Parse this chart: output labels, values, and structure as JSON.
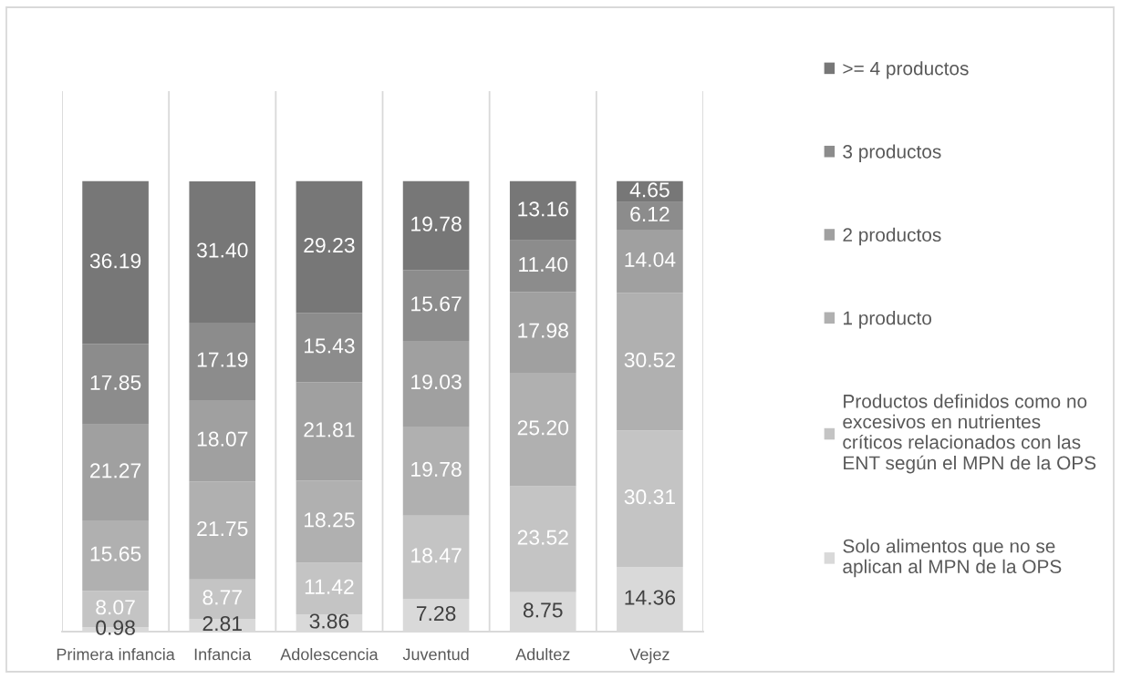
{
  "chart_data": {
    "type": "bar",
    "stacked": true,
    "categories": [
      "Primera infancia",
      "Infancia",
      "Adolescencia",
      "Juventud",
      "Adultez",
      "Vejez"
    ],
    "series": [
      {
        "name": "Solo alimentos que no se\naplican al MPN de la OPS",
        "color": "#d9d9d9",
        "values": [
          0.98,
          2.81,
          3.86,
          7.28,
          8.75,
          14.36
        ],
        "value_labels": [
          "0.98",
          "2.81",
          "3.86",
          "7.28",
          "8.75",
          "14.36"
        ]
      },
      {
        "name": "Productos definidos como no\nexcesivos en nutrientes\ncríticos relacionados con las\nENT según el MPN de la OPS",
        "color": "#c4c4c4",
        "values": [
          8.07,
          8.77,
          11.42,
          18.47,
          23.52,
          30.31
        ],
        "value_labels": [
          "8.07",
          "8.77",
          "11.42",
          "18.47",
          "23.52",
          "30.31"
        ]
      },
      {
        "name": "1 producto",
        "color": "#b0b0b0",
        "values": [
          15.65,
          21.75,
          18.25,
          19.78,
          25.2,
          30.52
        ],
        "value_labels": [
          "15.65",
          "21.75",
          "18.25",
          "19.78",
          "25.20",
          "30.52"
        ]
      },
      {
        "name": "2 productos",
        "color": "#a0a0a0",
        "values": [
          21.27,
          18.07,
          21.81,
          19.03,
          17.98,
          14.04
        ],
        "value_labels": [
          "21.27",
          "18.07",
          "21.81",
          "19.03",
          "17.98",
          "14.04"
        ]
      },
      {
        "name": "3 productos",
        "color": "#8c8c8c",
        "values": [
          17.85,
          17.19,
          15.43,
          15.67,
          11.4,
          6.12
        ],
        "value_labels": [
          "17.85",
          "17.19",
          "15.43",
          "15.67",
          "11.40",
          "6.12"
        ]
      },
      {
        "name": ">= 4 productos",
        "color": "#777777",
        "values": [
          36.19,
          31.4,
          29.23,
          19.78,
          13.16,
          4.65
        ],
        "value_labels": [
          "36.19",
          "31.40",
          "29.23",
          "19.78",
          "13.16",
          "4.65"
        ]
      }
    ],
    "ylim": [
      0,
      120
    ],
    "grid": "x",
    "legend": "right",
    "tick_labels": "x"
  }
}
